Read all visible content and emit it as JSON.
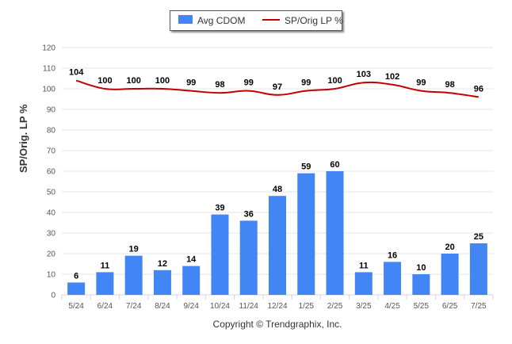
{
  "chart_data": {
    "type": "bar",
    "categories": [
      "5/24",
      "6/24",
      "7/24",
      "8/24",
      "9/24",
      "10/24",
      "11/24",
      "12/24",
      "1/25",
      "2/25",
      "3/25",
      "4/25",
      "5/25",
      "6/25",
      "7/25"
    ],
    "series": [
      {
        "name": "Avg CDOM",
        "type": "bar",
        "color": "#4285f4",
        "values": [
          6,
          11,
          19,
          12,
          14,
          39,
          36,
          48,
          59,
          60,
          11,
          16,
          10,
          20,
          25
        ]
      },
      {
        "name": "SP/Orig LP %",
        "type": "line",
        "color": "#c00000",
        "values": [
          104,
          100,
          100,
          100,
          99,
          98,
          99,
          97,
          99,
          100,
          103,
          102,
          99,
          98,
          96
        ]
      }
    ],
    "ylabel": "SP/Orig. LP %",
    "ylim": [
      0,
      120
    ],
    "yticks": [
      0,
      10,
      20,
      30,
      40,
      50,
      60,
      70,
      80,
      90,
      100,
      110,
      120
    ],
    "grid": true,
    "legend_position": "top-center"
  },
  "legend": {
    "bar_label": "Avg CDOM",
    "line_label": "SP/Orig LP %"
  },
  "footer": {
    "copyright": "Copyright © Trendgraphix, Inc."
  }
}
